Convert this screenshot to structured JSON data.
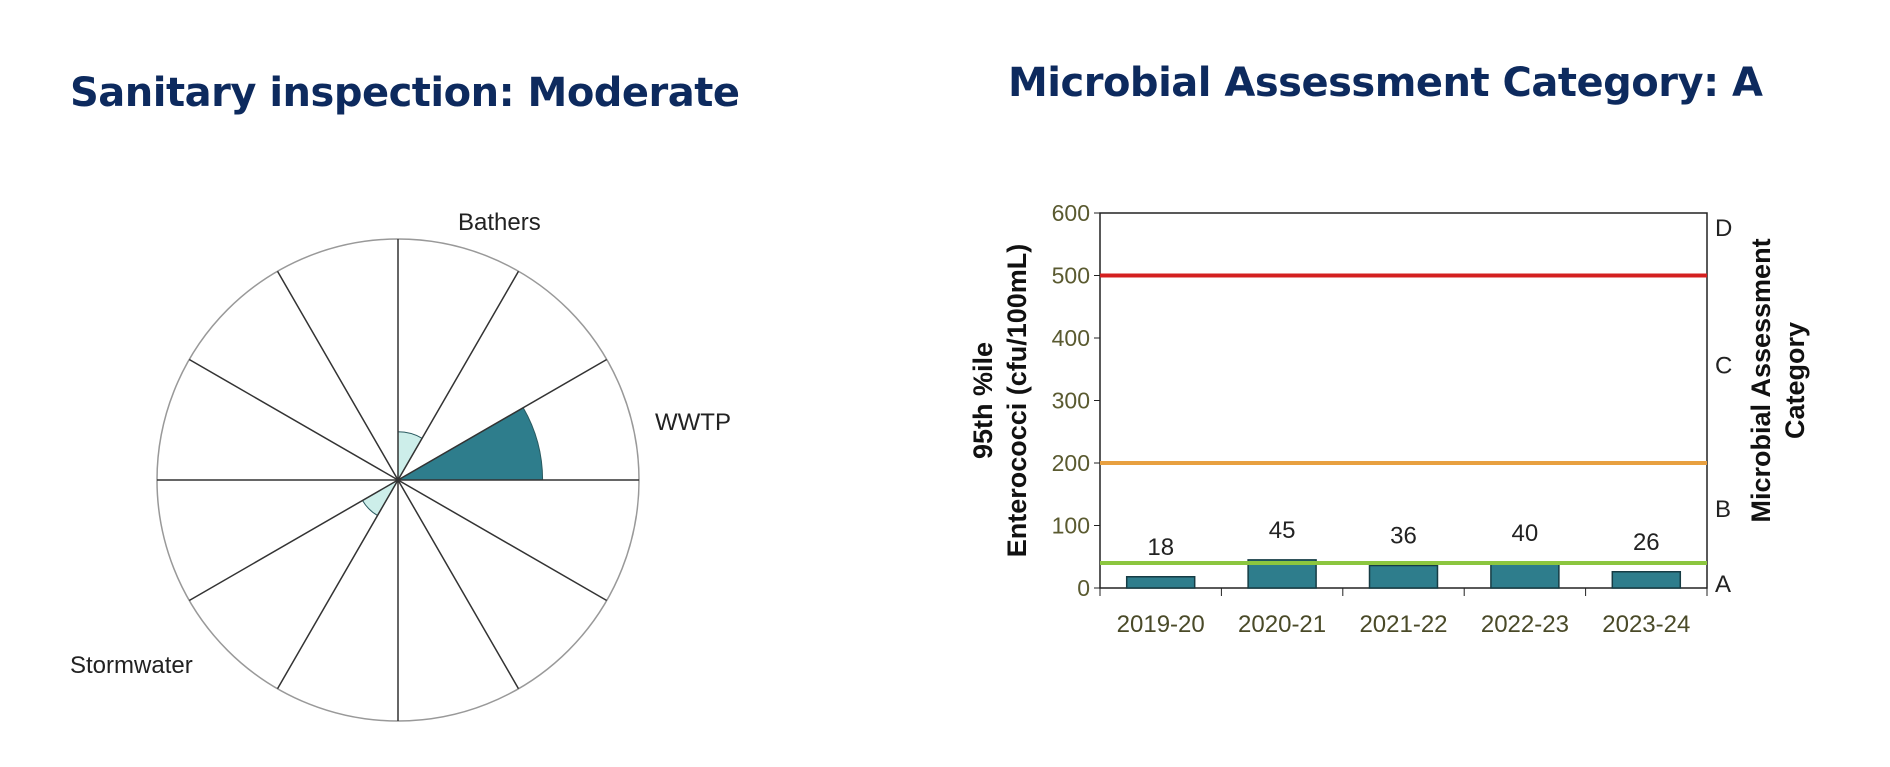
{
  "left_title": "Sanitary inspection: Moderate",
  "right_title": "Microbial Assessment Category: A",
  "chart_data": [
    {
      "type": "polar-area",
      "sectors": 12,
      "labels": [
        {
          "text": "Bathers",
          "angle_deg": 75
        },
        {
          "text": "WWTP",
          "angle_deg": 15
        },
        {
          "text": "Stormwater",
          "angle_deg": 210
        }
      ],
      "wedges": [
        {
          "start_deg": 0,
          "end_deg": 30,
          "value": 0.6,
          "color": "#2e7d8c"
        },
        {
          "start_deg": 60,
          "end_deg": 90,
          "value": 0.2,
          "color": "#cdeeea"
        },
        {
          "start_deg": 210,
          "end_deg": 240,
          "value": 0.17,
          "color": "#cdeeea"
        }
      ],
      "scale_max": 1
    },
    {
      "type": "bar",
      "categories": [
        "2019-20",
        "2020-21",
        "2021-22",
        "2022-23",
        "2023-24"
      ],
      "values": [
        18,
        45,
        36,
        40,
        26
      ],
      "data_labels": [
        "18",
        "45",
        "36",
        "40",
        "26"
      ],
      "ylabel_lines": [
        "95th %ile",
        "Enterococci (cfu/100mL)"
      ],
      "y2label_lines": [
        "Microbial Assessment",
        "Category"
      ],
      "ylim": [
        0,
        600
      ],
      "yticks": [
        0,
        100,
        200,
        300,
        400,
        500,
        600
      ],
      "ytick_labels": [
        "0",
        "100",
        "200",
        "300",
        "400",
        "500",
        "600"
      ],
      "right_categories": [
        {
          "label": "A",
          "value": 0
        },
        {
          "label": "B",
          "value": 120
        },
        {
          "label": "C",
          "value": 350
        },
        {
          "label": "D",
          "value": 570
        }
      ],
      "thresholds": [
        {
          "value": 500,
          "color": "#d42020"
        },
        {
          "value": 200,
          "color": "#e8a040"
        },
        {
          "value": 40,
          "color": "#8cc63f"
        }
      ],
      "bar_color": "#2e7d8c"
    }
  ]
}
